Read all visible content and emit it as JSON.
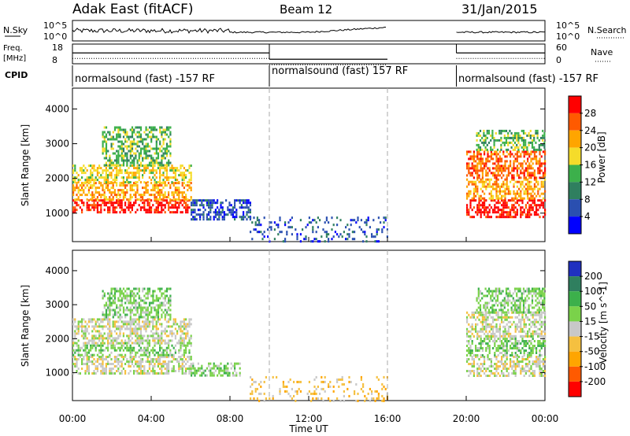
{
  "header": {
    "station": "Adak East (fitACF)",
    "beam": "Beam 12",
    "date": "31/Jan/2015"
  },
  "status_panels": {
    "nsky_label": "N.Sky",
    "nsearch_label": "N.Search",
    "nsky_ticks": [
      "10^5",
      "10^0"
    ],
    "nsearch_ticks": [
      "10^5",
      "10^0"
    ],
    "freq_label_1": "Freq.",
    "freq_label_2": "[MHz]",
    "freq_ticks": [
      "18",
      "8"
    ],
    "nave_label": "Nave",
    "nave_ticks": [
      "60",
      "0"
    ],
    "cpid_label": "CPID",
    "cpid_segments": [
      {
        "text": "normalsound (fast) -157 RF",
        "start_h": 0,
        "end_h": 10
      },
      {
        "text": "normalsound (fast) 157 RF",
        "start_h": 10,
        "end_h": 16
      },
      {
        "text": "normalsound (fast) -157 RF",
        "start_h": 19.5,
        "end_h": 24
      }
    ],
    "nsky_segments": [
      [
        0,
        16
      ],
      [
        19.5,
        24
      ]
    ],
    "freq_segments": [
      {
        "start_h": 0,
        "end_h": 10,
        "freq": 13.5
      },
      {
        "start_h": 10,
        "end_h": 16,
        "freq": 10.3
      },
      {
        "start_h": 19.5,
        "end_h": 24,
        "freq": 13.5
      }
    ]
  },
  "chart_data": [
    {
      "type": "heatmap",
      "name_key": "power",
      "ylabel": "Slant Range [km]",
      "xlabel": "Time UT",
      "x_ticks": [
        "00:00",
        "04:00",
        "08:00",
        "12:00",
        "16:00",
        "20:00",
        "00:00"
      ],
      "x_tick_hours": [
        0,
        4,
        8,
        12,
        16,
        20,
        24
      ],
      "xlim_hours": [
        0,
        24
      ],
      "y_ticks": [
        1000,
        2000,
        3000,
        4000
      ],
      "ylim_km": [
        180,
        4600
      ],
      "dashed_lines_hours": [
        10,
        16
      ],
      "colorbar_label": "Power [dB]",
      "colorbar_ticks": [
        "4",
        "8",
        "12",
        "16",
        "20",
        "24",
        "28"
      ],
      "colorbar_colors": [
        "#0000ff",
        "#2a4fb0",
        "#2f7f5f",
        "#3cb04b",
        "#f5dc2a",
        "#ffa500",
        "#ff5a00",
        "#ff0000"
      ],
      "echo_regions": [
        {
          "start_h": 0,
          "end_h": 6,
          "range_km": [
            1000,
            1400
          ],
          "level": 7
        },
        {
          "start_h": 0,
          "end_h": 6,
          "range_km": [
            1400,
            1900
          ],
          "level": 5
        },
        {
          "start_h": 0,
          "end_h": 6,
          "range_km": [
            1900,
            2400
          ],
          "level": 4
        },
        {
          "start_h": 1.5,
          "end_h": 5,
          "range_km": [
            2400,
            3500
          ],
          "level": 3
        },
        {
          "start_h": 6,
          "end_h": 9,
          "range_km": [
            800,
            1400
          ],
          "level": 1
        },
        {
          "start_h": 9,
          "end_h": 16,
          "range_km": [
            200,
            900
          ],
          "level": 1
        },
        {
          "start_h": 20,
          "end_h": 24,
          "range_km": [
            900,
            1400
          ],
          "level": 7
        },
        {
          "start_h": 20,
          "end_h": 24,
          "range_km": [
            1400,
            2000
          ],
          "level": 5
        },
        {
          "start_h": 20,
          "end_h": 24,
          "range_km": [
            2000,
            2800
          ],
          "level": 6
        },
        {
          "start_h": 20.5,
          "end_h": 24,
          "range_km": [
            2800,
            3400
          ],
          "level": 3
        }
      ]
    },
    {
      "type": "heatmap",
      "name_key": "velocity",
      "ylabel": "Slant Range [km]",
      "xlabel": "Time UT",
      "x_ticks": [
        "00:00",
        "04:00",
        "08:00",
        "12:00",
        "16:00",
        "20:00",
        "00:00"
      ],
      "x_tick_hours": [
        0,
        4,
        8,
        12,
        16,
        20,
        24
      ],
      "xlim_hours": [
        0,
        24
      ],
      "y_ticks": [
        1000,
        2000,
        3000,
        4000
      ],
      "ylim_km": [
        180,
        4600
      ],
      "dashed_lines_hours": [
        10,
        16
      ],
      "colorbar_label": "Velocity [m s^-1]",
      "colorbar_ticks": [
        "200",
        "100",
        "50",
        "15",
        "-15",
        "-50",
        "-100",
        "-200"
      ],
      "colorbar_colors": [
        "#2030c0",
        "#2f7f5f",
        "#3cb04b",
        "#7ad24a",
        "#c8c8c8",
        "#f5c040",
        "#ffa500",
        "#ff5a00",
        "#ff0000"
      ],
      "echo_regions": [
        {
          "start_h": 0,
          "end_h": 6,
          "range_km": [
            1000,
            1500
          ],
          "level": 4
        },
        {
          "start_h": 0,
          "end_h": 6,
          "range_km": [
            1500,
            1900
          ],
          "level": 3
        },
        {
          "start_h": 0,
          "end_h": 6,
          "range_km": [
            1900,
            2600
          ],
          "level": 4
        },
        {
          "start_h": 1.5,
          "end_h": 5,
          "range_km": [
            2600,
            3500
          ],
          "level": 3
        },
        {
          "start_h": 6,
          "end_h": 8.5,
          "range_km": [
            900,
            1300
          ],
          "level": 3
        },
        {
          "start_h": 9,
          "end_h": 16,
          "range_km": [
            200,
            900
          ],
          "level": 5
        },
        {
          "start_h": 20,
          "end_h": 24,
          "range_km": [
            900,
            1500
          ],
          "level": 4
        },
        {
          "start_h": 20,
          "end_h": 24,
          "range_km": [
            1500,
            2100
          ],
          "level": 3
        },
        {
          "start_h": 20,
          "end_h": 24,
          "range_km": [
            2100,
            2800
          ],
          "level": 4
        },
        {
          "start_h": 20.5,
          "end_h": 24,
          "range_km": [
            2800,
            3500
          ],
          "level": 3
        }
      ]
    }
  ]
}
